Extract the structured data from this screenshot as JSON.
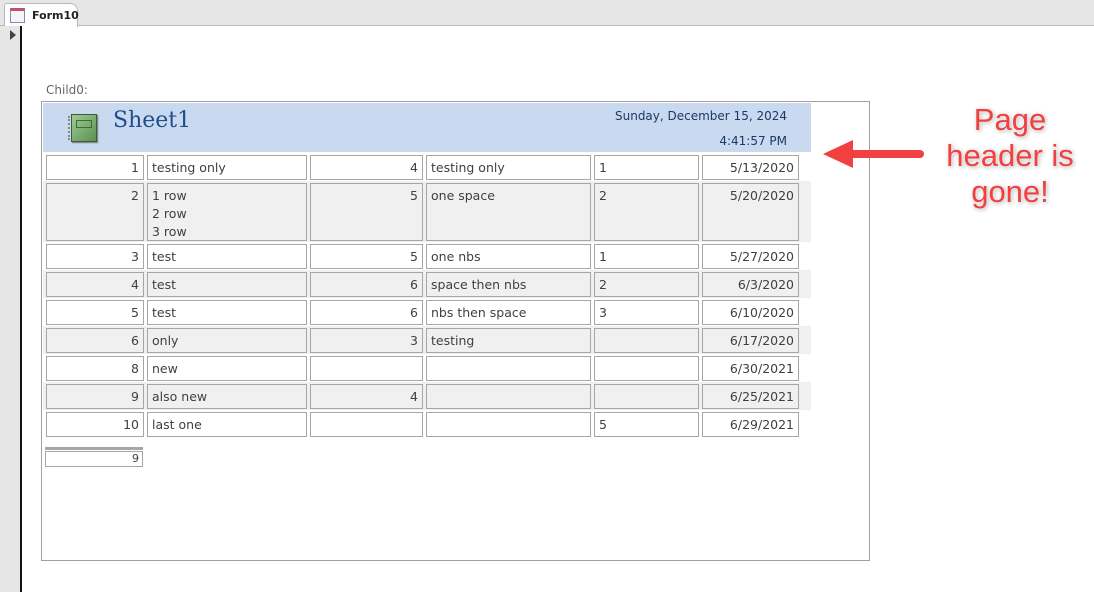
{
  "tab": {
    "label": "Form10"
  },
  "subform_label": "Child0:",
  "header": {
    "title": "Sheet1",
    "date": "Sunday, December 15, 2024",
    "time": "4:41:57 PM"
  },
  "rows": [
    [
      "1",
      "testing only",
      "4",
      "testing only",
      "1",
      "5/13/2020"
    ],
    [
      "2",
      "1 row\n2 row\n3 row",
      "5",
      "one space",
      "2",
      "5/20/2020"
    ],
    [
      "3",
      "test",
      "5",
      "one nbs",
      "1",
      "5/27/2020"
    ],
    [
      "4",
      "test",
      "6",
      "space then nbs",
      "2",
      "6/3/2020"
    ],
    [
      "5",
      "test",
      "6",
      "nbs then space",
      "3",
      "6/10/2020"
    ],
    [
      "6",
      "only",
      "3",
      "testing",
      "",
      "6/17/2020"
    ],
    [
      "8",
      "new",
      "",
      "",
      "",
      "6/30/2021"
    ],
    [
      "9",
      "also new",
      "4",
      "",
      "",
      "6/25/2021"
    ],
    [
      "10",
      "last one",
      "",
      "",
      "5",
      "6/29/2021"
    ]
  ],
  "footer": {
    "count": "9"
  },
  "annotation": {
    "text": "Page header is gone!",
    "color": "#f04040"
  }
}
